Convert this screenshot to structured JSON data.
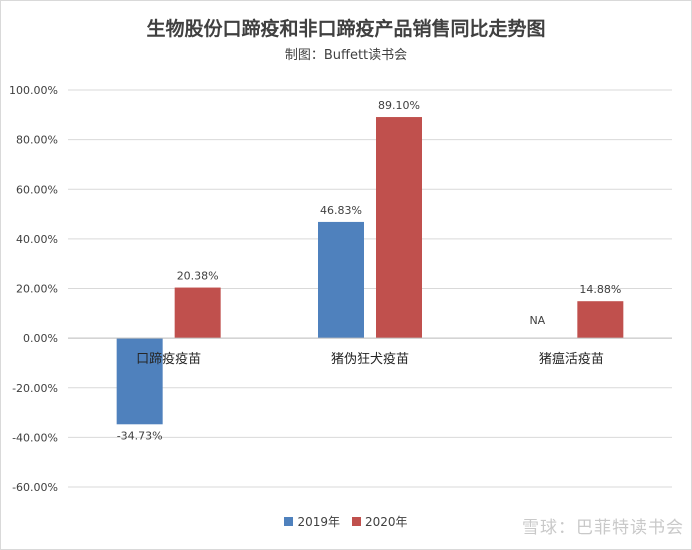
{
  "chart_data": {
    "type": "bar",
    "title": "生物股份口蹄疫和非口蹄疫产品销售同比走势图",
    "subtitle": "制图：Buffett读书会",
    "categories": [
      "口蹄疫疫苗",
      "猪伪狂犬疫苗",
      "猪瘟活疫苗"
    ],
    "series": [
      {
        "name": "2019年",
        "color": "#4f81bd",
        "values": [
          -34.73,
          46.83,
          null
        ],
        "labels": [
          "-34.73%",
          "46.83%",
          "NA"
        ]
      },
      {
        "name": "2020年",
        "color": "#c0504d",
        "values": [
          20.38,
          89.1,
          14.88
        ],
        "labels": [
          "20.38%",
          "89.10%",
          "14.88%"
        ]
      }
    ],
    "ylim": [
      -60,
      100
    ],
    "yticks": [
      "100.00%",
      "80.00%",
      "60.00%",
      "40.00%",
      "20.00%",
      "0.00%",
      "-20.00%",
      "-40.00%",
      "-60.00%"
    ],
    "ytick_values": [
      100,
      80,
      60,
      40,
      20,
      0,
      -20,
      -40,
      -60
    ],
    "grid": true,
    "legend_position": "bottom"
  },
  "watermark": "雪球：巴菲特读书会"
}
